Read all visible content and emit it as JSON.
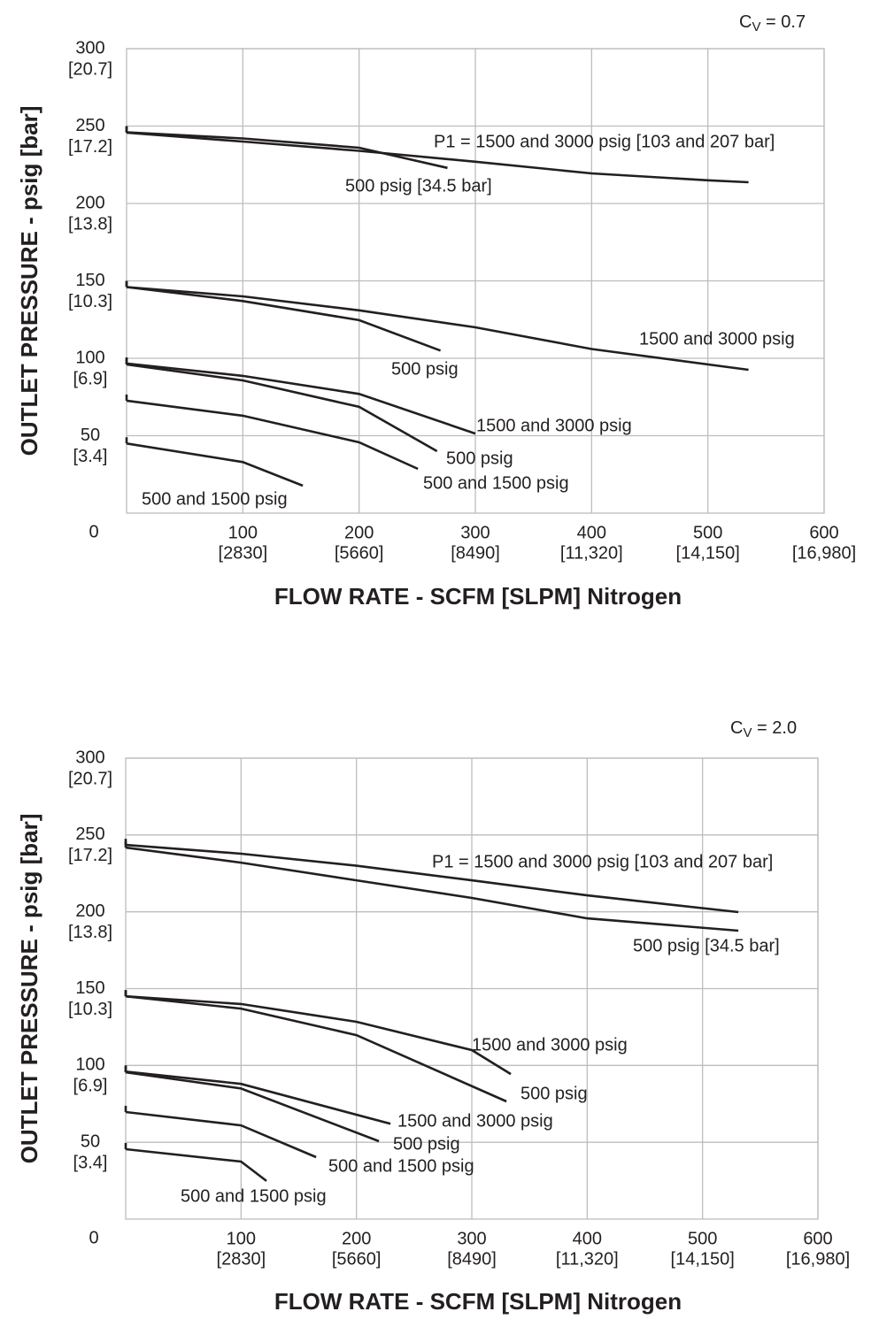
{
  "chart_data": [
    {
      "type": "line",
      "cv_label": {
        "base": "C",
        "sub": "V",
        "rest": " = 0.7"
      },
      "xlabel": "FLOW RATE - SCFM [SLPM] Nitrogen",
      "ylabel": "OUTLET PRESSURE - psig [bar]",
      "xlim": [
        0,
        600
      ],
      "ylim": [
        0,
        300
      ],
      "xticks": [
        100,
        200,
        300,
        400,
        500,
        600
      ],
      "xticks_secondary": [
        "[2830]",
        "[5660]",
        "[8490]",
        "[11,320]",
        "[14,150]",
        "[16,980]"
      ],
      "yticks": [
        0,
        50,
        100,
        150,
        200,
        250,
        300
      ],
      "yticks_secondary": [
        null,
        "[3.4]",
        "[6.9]",
        "[10.3]",
        "[13.8]",
        "[17.2]",
        "[20.7]"
      ],
      "grid": true,
      "color": "#231f20",
      "series": [
        {
          "name": "P1 = 1500 and 3000 psig [103 and 207 bar]",
          "x": [
            0,
            100,
            200,
            300,
            400,
            500,
            535
          ],
          "values": [
            245.7,
            240,
            234,
            227,
            219.4,
            215,
            213.7
          ]
        },
        {
          "name": "500 psig [34.5 bar]",
          "x": [
            0,
            100,
            200,
            276
          ],
          "values": [
            246,
            242,
            236,
            223
          ]
        },
        {
          "name": "1500 and 3000 psig",
          "x": [
            0,
            100,
            200,
            300,
            400,
            535
          ],
          "values": [
            146,
            140,
            131,
            120,
            106,
            92.6
          ]
        },
        {
          "name": "500 psig",
          "x": [
            0,
            100,
            200,
            270
          ],
          "values": [
            146,
            137,
            124.6,
            105
          ]
        },
        {
          "name": "1500 and 3000 psig",
          "x": [
            0,
            100,
            200,
            300
          ],
          "values": [
            96.6,
            88.6,
            77,
            51.4
          ]
        },
        {
          "name": "500 psig",
          "x": [
            0,
            100,
            200,
            267
          ],
          "values": [
            96,
            85.7,
            68.6,
            40
          ]
        },
        {
          "name": "500 and 1500 psig",
          "x": [
            0,
            100,
            200,
            250.6
          ],
          "values": [
            72.6,
            62.9,
            45.7,
            28.6
          ]
        },
        {
          "name": "500 and 1500 psig",
          "x": [
            0,
            100,
            151.6
          ],
          "values": [
            45,
            33,
            17.7
          ]
        }
      ]
    },
    {
      "type": "line",
      "cv_label": {
        "base": "C",
        "sub": "V",
        "rest": " = 2.0"
      },
      "xlabel": "FLOW RATE - SCFM [SLPM] Nitrogen",
      "ylabel": "OUTLET PRESSURE - psig [bar]",
      "xlim": [
        0,
        600
      ],
      "ylim": [
        0,
        300
      ],
      "xticks": [
        100,
        200,
        300,
        400,
        500,
        600
      ],
      "xticks_secondary": [
        "[2830]",
        "[5660]",
        "[8490]",
        "[11,320]",
        "[14,150]",
        "[16,980]"
      ],
      "yticks": [
        0,
        50,
        100,
        150,
        200,
        250,
        300
      ],
      "yticks_secondary": [
        null,
        "[3.4]",
        "[6.9]",
        "[10.3]",
        "[13.8]",
        "[17.2]",
        "[20.7]"
      ],
      "grid": true,
      "color": "#231f20",
      "series": [
        {
          "name": "P1 = 1500 and 3000 psig [103 and 207 bar]",
          "x": [
            0,
            100,
            200,
            300,
            400,
            531
          ],
          "values": [
            243.5,
            237.8,
            230,
            220.5,
            210.7,
            199.8
          ]
        },
        {
          "name": "500 psig [34.5 bar]",
          "x": [
            0,
            100,
            200,
            300,
            400,
            531
          ],
          "values": [
            241.8,
            232,
            220.5,
            209,
            195.7,
            187.7
          ]
        },
        {
          "name": "1500 and 3000 psig",
          "x": [
            0,
            100,
            200,
            300,
            333.8
          ],
          "values": [
            145,
            140,
            128.4,
            110,
            94.4
          ]
        },
        {
          "name": "500 psig",
          "x": [
            0,
            100,
            200,
            330
          ],
          "values": [
            145,
            137,
            119.7,
            76.6
          ]
        },
        {
          "name": "1500 and 3000 psig",
          "x": [
            0,
            100,
            229.5
          ],
          "values": [
            96,
            88,
            62
          ]
        },
        {
          "name": "500 psig",
          "x": [
            0,
            100,
            219.5
          ],
          "values": [
            95.5,
            85,
            50.7
          ]
        },
        {
          "name": "500 and 1500 psig",
          "x": [
            0,
            100,
            165
          ],
          "values": [
            69.7,
            61,
            40.3
          ]
        },
        {
          "name": "500 and 1500 psig",
          "x": [
            0,
            100,
            122
          ],
          "values": [
            45.5,
            37.4,
            24.8
          ]
        }
      ]
    }
  ]
}
